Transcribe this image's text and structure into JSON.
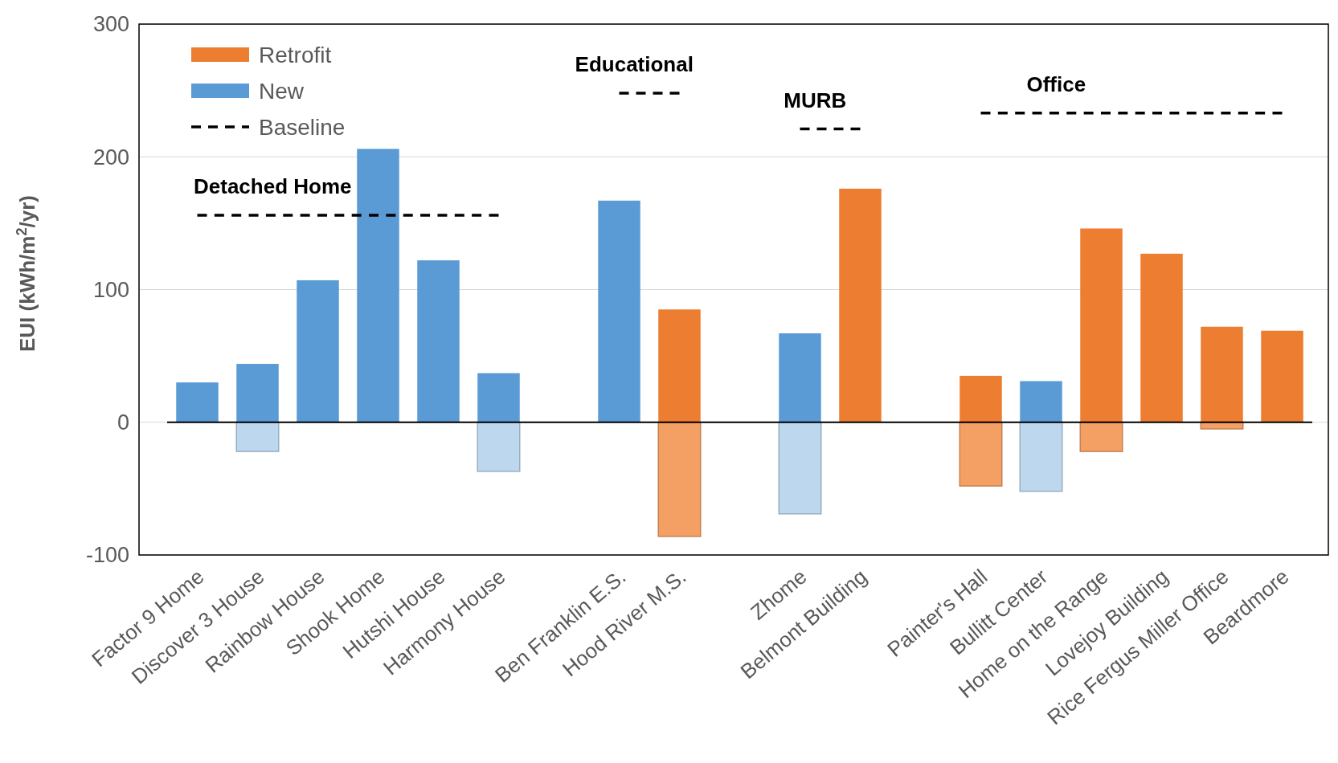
{
  "chart_data": {
    "type": "bar",
    "ylabel": "EUI (kWh/m$^{2}$/yr)",
    "categories": [
      "Factor 9 Home",
      "Discover 3 House",
      "Rainbow House",
      "Shook Home",
      "Hutshi House",
      "Harmony House",
      null,
      "Ben Franklin E.S.",
      "Hood River M.S.",
      null,
      "Zhome",
      "Belmont Building",
      null,
      "Painter's Hall",
      "Bullitt Center",
      "Home on the Range",
      "Lovejoy Building",
      "Rice Fergus Miller Office",
      "Beardmore"
    ],
    "series": [
      {
        "name": "Retrofit",
        "color": "#ed7d31",
        "values": [
          null,
          null,
          null,
          null,
          null,
          null,
          null,
          null,
          85,
          null,
          null,
          176,
          null,
          35,
          null,
          146,
          127,
          72,
          69
        ]
      },
      {
        "name": "New",
        "color": "#5b9bd5",
        "values": [
          30,
          44,
          107,
          206,
          122,
          37,
          null,
          167,
          null,
          null,
          67,
          null,
          null,
          null,
          31,
          null,
          null,
          null,
          null
        ]
      },
      {
        "type": "line",
        "name": "Baseline",
        "color": "#000000",
        "line_style": "dashed",
        "values": [
          156,
          156,
          156,
          156,
          156,
          156,
          null,
          248,
          248,
          null,
          221,
          221,
          null,
          233,
          233,
          233,
          233,
          233,
          233
        ]
      },
      {
        "color": "#f4a064",
        "values": [
          null,
          null,
          null,
          null,
          null,
          null,
          null,
          null,
          -86,
          null,
          null,
          null,
          null,
          -48,
          null,
          -22,
          null,
          -5,
          null
        ]
      },
      {
        "color": "#bdd7ee",
        "values": [
          null,
          -22,
          null,
          null,
          null,
          -37,
          null,
          null,
          null,
          null,
          -69,
          null,
          null,
          null,
          -52,
          null,
          null,
          null,
          null
        ]
      }
    ],
    "ylim": [
      -100,
      300
    ],
    "yticks": [
      -100,
      0,
      100,
      200,
      300
    ],
    "grid": "y",
    "legend": "top left",
    "annotations": [
      "Detached Home",
      "Educational",
      "MURB",
      "Office"
    ]
  }
}
